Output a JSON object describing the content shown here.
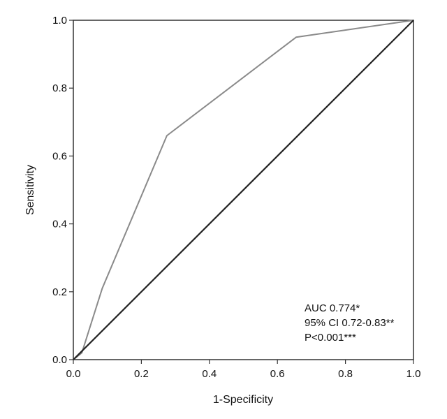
{
  "chart_data": {
    "type": "line",
    "xlabel": "1-Specificity",
    "ylabel": "Sensitivity",
    "xlim": [
      0,
      1
    ],
    "ylim": [
      0,
      1
    ],
    "x_ticks": [
      "0.0",
      "0.2",
      "0.4",
      "0.6",
      "0.8",
      "1.0"
    ],
    "y_ticks": [
      "0.0",
      "0.2",
      "0.4",
      "0.6",
      "0.8",
      "1.0"
    ],
    "grid": false,
    "series": [
      {
        "color": "#8a8a8a",
        "x": [
          0.0,
          0.025,
          0.085,
          0.275,
          0.655,
          1.0
        ],
        "y": [
          0.0,
          0.02,
          0.21,
          0.66,
          0.95,
          1.0
        ]
      },
      {
        "color": "#222222",
        "x": [
          0.0,
          1.0
        ],
        "y": [
          0.0,
          1.0
        ]
      }
    ],
    "annotations": [
      "AUC 0.774*",
      "95% CI 0.72-0.83**",
      "P<0.001***"
    ]
  }
}
